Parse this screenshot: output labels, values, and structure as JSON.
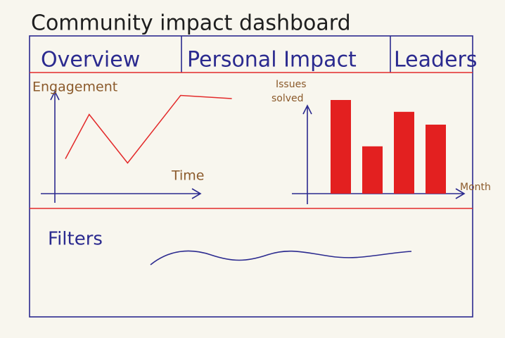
{
  "title": "Community impact dashboard",
  "tabs": [
    "Overview",
    "Personal Impact",
    "Leaders"
  ],
  "engagement_chart": {
    "type": "line",
    "y_label": "Engagement",
    "x_label": "Time",
    "x": [
      5,
      18,
      39,
      68,
      96
    ],
    "values": [
      33,
      75,
      29,
      93,
      90
    ],
    "xlim": [
      0,
      100
    ],
    "ylim": [
      0,
      100
    ],
    "color": "#e32a2a"
  },
  "issues_chart": {
    "type": "bar",
    "y_label": [
      "Issues",
      "solved"
    ],
    "x_label": "Month",
    "values": [
      95,
      48,
      83,
      70
    ],
    "ylim": [
      0,
      100
    ],
    "color": "#e32020"
  },
  "filters": {
    "label": "Filters"
  }
}
